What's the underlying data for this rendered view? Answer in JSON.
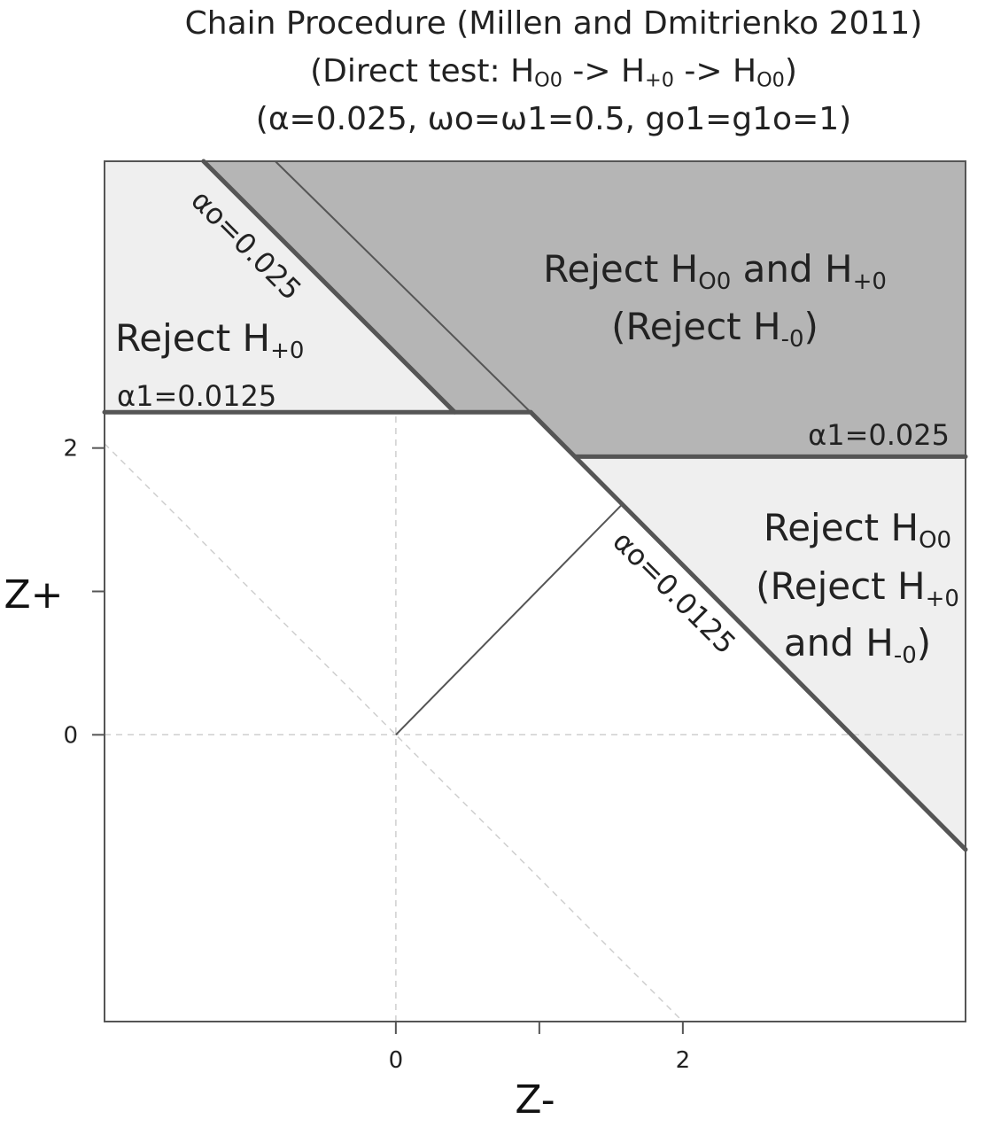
{
  "title": {
    "line1": "Chain Procedure (Millen and Dmitrienko 2011)",
    "line2": {
      "pre": "(Direct test: H",
      "s1": "O0",
      "mid1": " ->  H",
      "s2": "+0",
      "mid2": " -> H",
      "s3": "O0",
      "post": ")"
    },
    "line3": "(α=0.025, ωo=ω1=0.5, go1=g1o=1)"
  },
  "chart_data": {
    "type": "area",
    "xlabel": "Z-",
    "ylabel": "Z+",
    "xlim": [
      -2.03,
      3.97
    ],
    "ylim": [
      -2.0,
      4.0
    ],
    "x_ticks": [
      0,
      1,
      2
    ],
    "y_ticks": [
      0,
      1,
      2
    ],
    "x_tick_labels": [
      "0",
      "",
      "2"
    ],
    "y_tick_labels": [
      "0",
      "",
      "2"
    ],
    "colors": {
      "light_region": "#efefef",
      "dark_region": "#b5b5b5",
      "boundary": "#555555",
      "thin_line": "#555555",
      "guide": "#cfcfcf"
    },
    "regions": [
      {
        "name": "reject-h-plus0-region",
        "shade": "light",
        "points": [
          [
            -2.03,
            4.0
          ],
          [
            -1.34,
            4.0
          ],
          [
            0.41,
            2.25
          ],
          [
            -2.03,
            2.25
          ]
        ]
      },
      {
        "name": "reject-ho0-and-h-plus0-region",
        "shade": "dark",
        "points": [
          [
            -1.34,
            4.0
          ],
          [
            3.97,
            4.0
          ],
          [
            3.97,
            1.94
          ],
          [
            1.25,
            1.94
          ],
          [
            0.94,
            2.25
          ],
          [
            0.41,
            2.25
          ]
        ]
      },
      {
        "name": "reject-ho0-region",
        "shade": "light",
        "points": [
          [
            1.25,
            1.94
          ],
          [
            3.97,
            1.94
          ],
          [
            3.97,
            -0.8
          ],
          [
            1.57,
            1.6
          ]
        ]
      }
    ],
    "lines": [
      {
        "name": "alpha-o-0025-boundary",
        "style": "thick",
        "points": [
          [
            -1.34,
            4.0
          ],
          [
            0.41,
            2.25
          ]
        ]
      },
      {
        "name": "alpha-1-00125-boundary",
        "style": "thick",
        "points": [
          [
            -2.03,
            2.25
          ],
          [
            0.94,
            2.25
          ]
        ]
      },
      {
        "name": "alpha-o-00125-boundary",
        "style": "thick",
        "points": [
          [
            0.94,
            2.25
          ],
          [
            3.97,
            -0.8
          ]
        ]
      },
      {
        "name": "alpha-1-0025-boundary",
        "style": "thick",
        "points": [
          [
            1.25,
            1.94
          ],
          [
            3.97,
            1.94
          ]
        ]
      },
      {
        "name": "thin-diagonal-upper",
        "style": "thin",
        "points": [
          [
            -0.84,
            4.0
          ],
          [
            0.97,
            2.22
          ]
        ]
      },
      {
        "name": "thin-diagonal-from-origin",
        "style": "thin",
        "points": [
          [
            0,
            0
          ],
          [
            1.57,
            1.6
          ]
        ]
      },
      {
        "name": "guide-anti-diagonal",
        "style": "dashed",
        "points": [
          [
            -2.03,
            2.03
          ],
          [
            2.0,
            -2.0
          ]
        ]
      },
      {
        "name": "guide-x-zero",
        "style": "dashed",
        "points": [
          [
            0,
            -2.0
          ],
          [
            0,
            2.25
          ]
        ]
      },
      {
        "name": "guide-y-zero",
        "style": "dashed",
        "points": [
          [
            -2.03,
            0
          ],
          [
            3.97,
            0
          ]
        ]
      }
    ],
    "region_labels": {
      "top_left": {
        "text": "Reject H",
        "sub": "+0"
      },
      "top_right_line1": {
        "pre": "Reject H",
        "s1": "O0",
        "mid": " and H",
        "s2": "+0"
      },
      "top_right_line2": {
        "pre": "(Reject H",
        "s1": "-0",
        "post": ")"
      },
      "right_line1": {
        "pre": "Reject H",
        "s1": "O0"
      },
      "right_line2": {
        "pre": "(Reject H",
        "s1": "+0"
      },
      "right_line3": {
        "pre": "and H",
        "s1": "-0",
        "post": ")"
      }
    },
    "boundary_labels": {
      "alpha_o_0025": "αo=0.025",
      "alpha_1_00125": "α1=0.0125",
      "alpha_1_0025": "α1=0.025",
      "alpha_o_00125": "αo=0.0125"
    }
  }
}
